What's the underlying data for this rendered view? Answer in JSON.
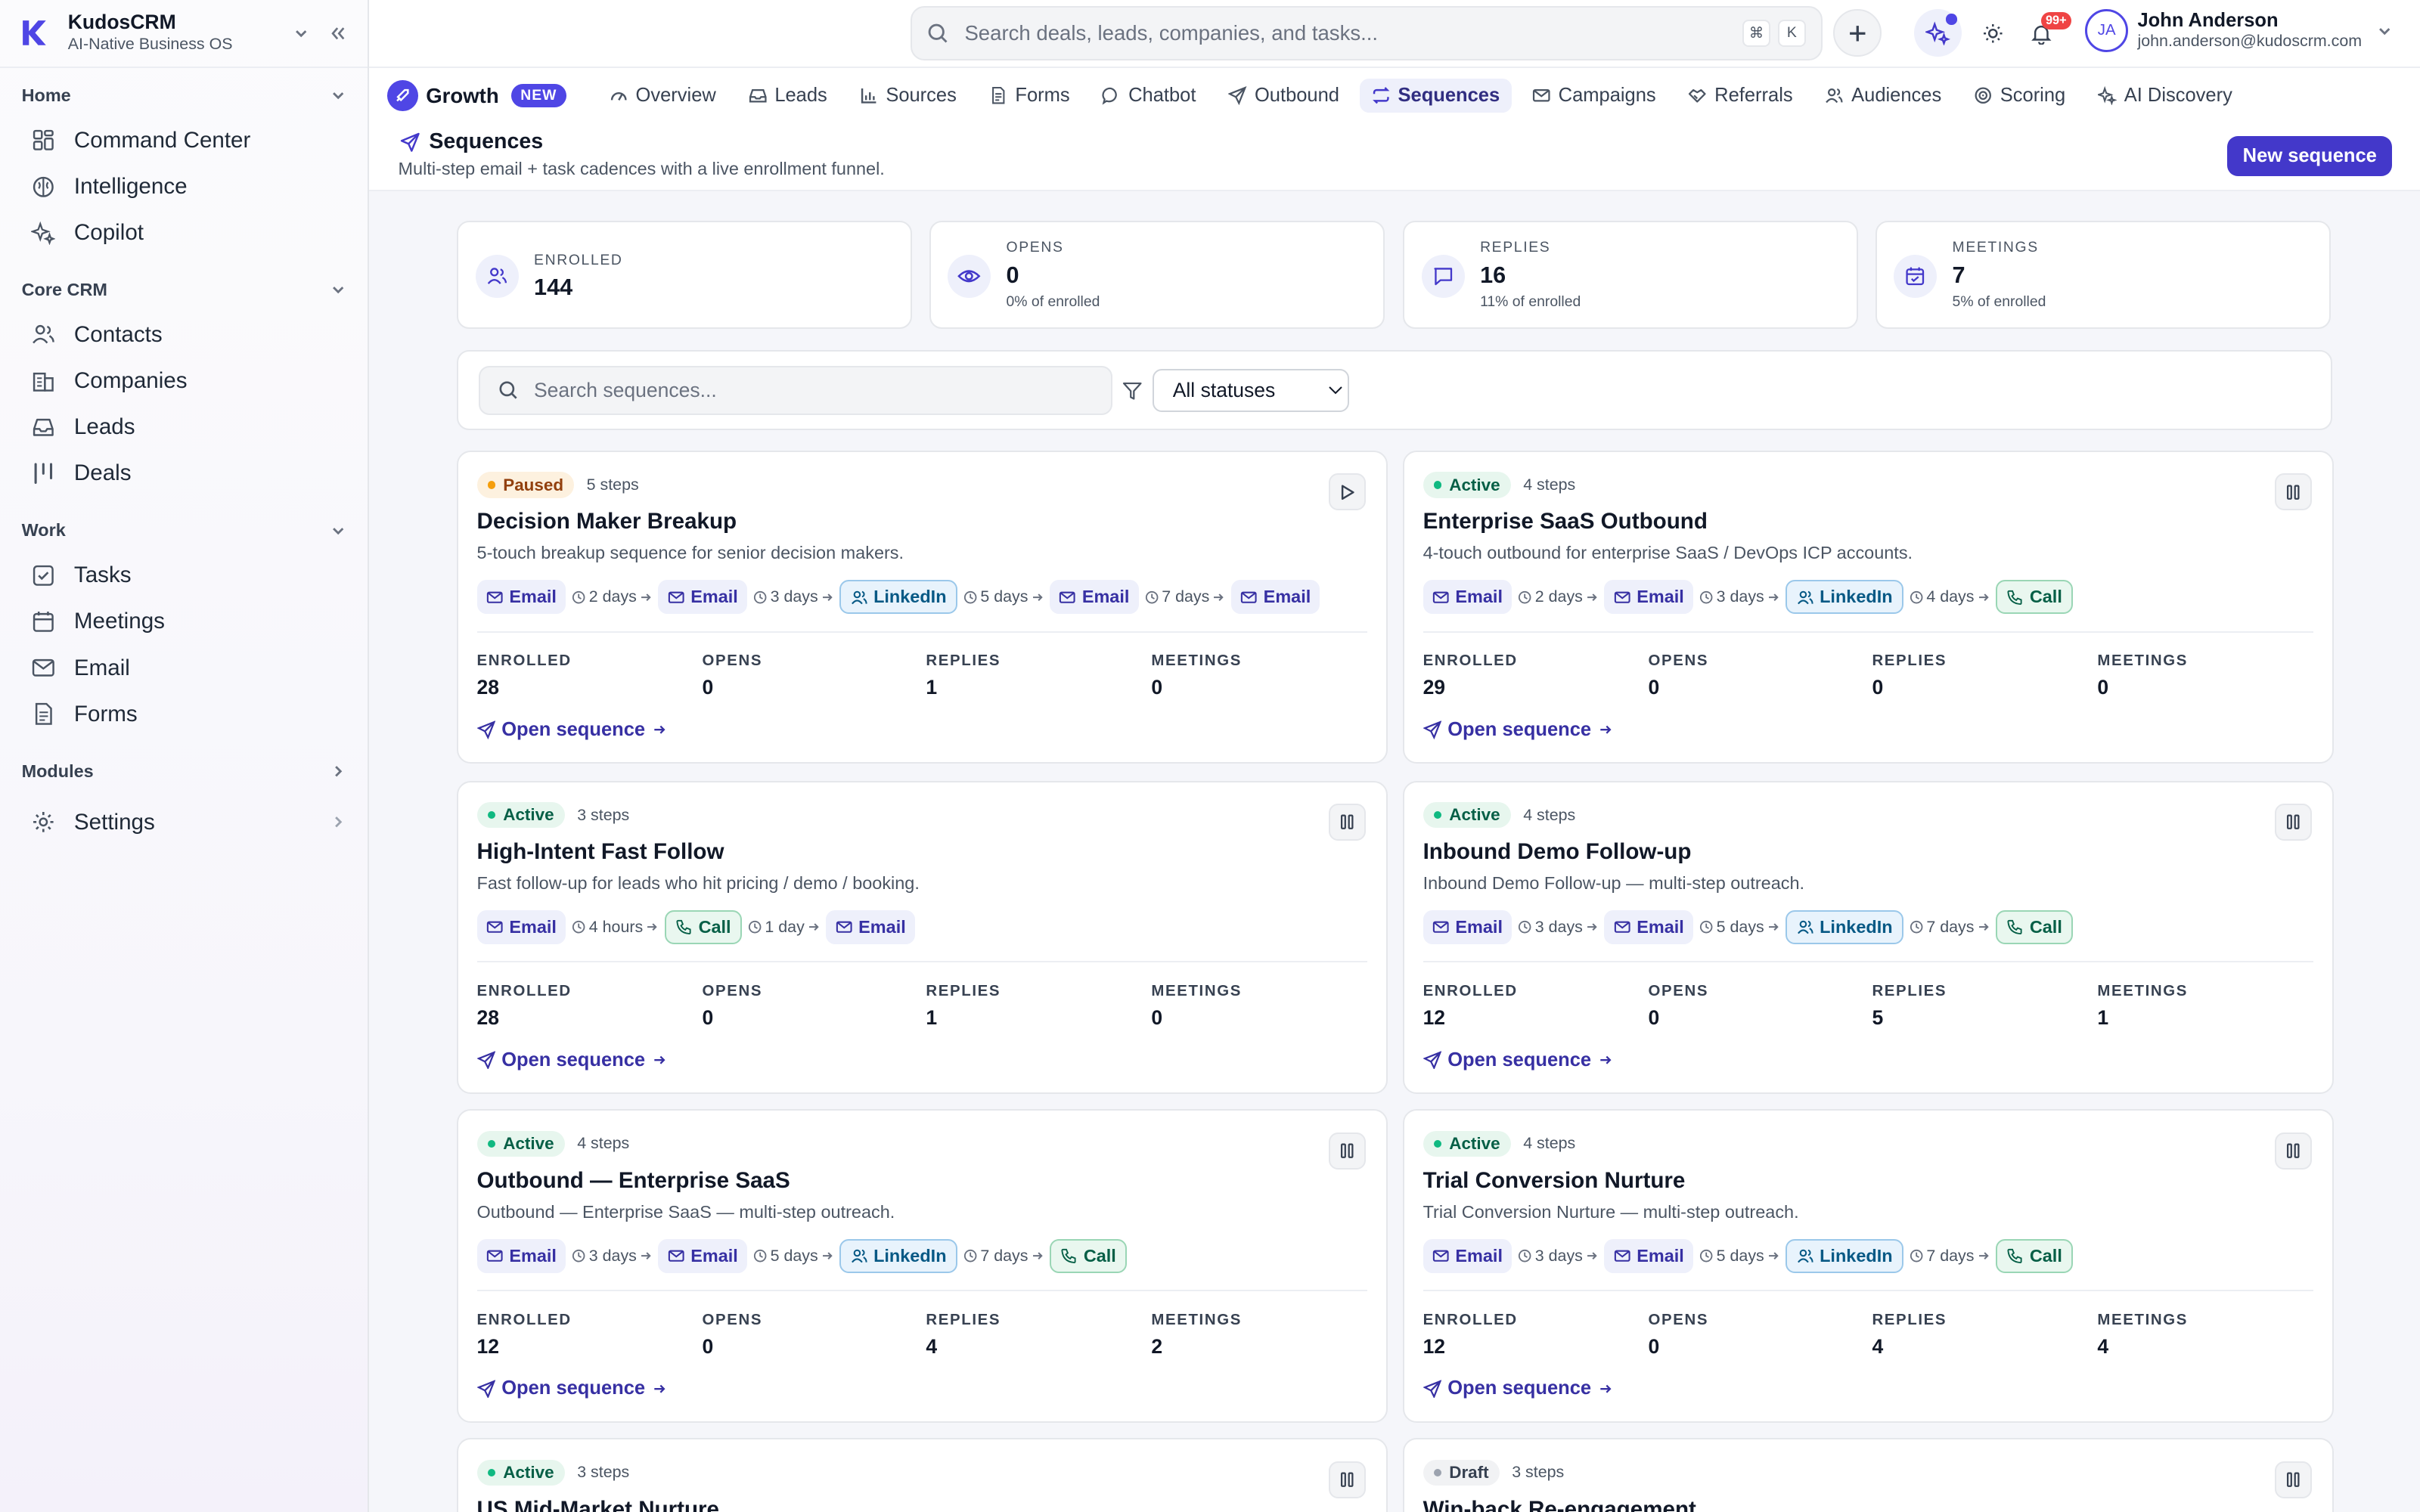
{
  "brand": {
    "name": "KudosCRM",
    "subtitle": "AI-Native Business OS"
  },
  "sidebar": {
    "sections": [
      {
        "label": "Home",
        "items": [
          {
            "label": "Command Center",
            "icon": "grid-icon"
          },
          {
            "label": "Intelligence",
            "icon": "brain-icon"
          },
          {
            "label": "Copilot",
            "icon": "sparkles-icon"
          }
        ]
      },
      {
        "label": "Core CRM",
        "items": [
          {
            "label": "Contacts",
            "icon": "users-icon"
          },
          {
            "label": "Companies",
            "icon": "building-icon"
          },
          {
            "label": "Leads",
            "icon": "inbox-icon"
          },
          {
            "label": "Deals",
            "icon": "kanban-icon"
          }
        ]
      },
      {
        "label": "Work",
        "items": [
          {
            "label": "Tasks",
            "icon": "checkbox-icon"
          },
          {
            "label": "Meetings",
            "icon": "calendar-icon"
          },
          {
            "label": "Email",
            "icon": "mail-icon"
          },
          {
            "label": "Forms",
            "icon": "file-icon"
          }
        ]
      },
      {
        "label": "Modules",
        "items": []
      }
    ],
    "settings_label": "Settings"
  },
  "topbar": {
    "search_placeholder": "Search deals, leads, companies, and tasks...",
    "kbd": [
      "⌘",
      "K"
    ],
    "notification_count": "99+",
    "user": {
      "initials": "JA",
      "name": "John Anderson",
      "email": "john.anderson@kudoscrm.com"
    }
  },
  "tabs": {
    "growth_label": "Growth",
    "new_badge": "NEW",
    "items": [
      {
        "label": "Overview",
        "active": false
      },
      {
        "label": "Leads",
        "active": false
      },
      {
        "label": "Sources",
        "active": false
      },
      {
        "label": "Forms",
        "active": false
      },
      {
        "label": "Chatbot",
        "active": false
      },
      {
        "label": "Outbound",
        "active": false
      },
      {
        "label": "Sequences",
        "active": true
      },
      {
        "label": "Campaigns",
        "active": false
      },
      {
        "label": "Referrals",
        "active": false
      },
      {
        "label": "Audiences",
        "active": false
      },
      {
        "label": "Scoring",
        "active": false
      },
      {
        "label": "AI Discovery",
        "active": false
      }
    ]
  },
  "page": {
    "title": "Sequences",
    "subtitle": "Multi-step email + task cadences with a live enrollment funnel.",
    "new_button": "New sequence"
  },
  "stats": [
    {
      "label": "ENROLLED",
      "value": "144",
      "note": ""
    },
    {
      "label": "OPENS",
      "value": "0",
      "note": "0% of enrolled"
    },
    {
      "label": "REPLIES",
      "value": "16",
      "note": "11% of enrolled"
    },
    {
      "label": "MEETINGS",
      "value": "7",
      "note": "5% of enrolled"
    }
  ],
  "filters": {
    "search_placeholder": "Search sequences...",
    "status_selected": "All statuses"
  },
  "metric_labels": {
    "enrolled": "ENROLLED",
    "opens": "OPENS",
    "replies": "REPLIES",
    "meetings": "MEETINGS"
  },
  "open_link_label": "Open sequence",
  "sequences": [
    {
      "status": "Paused",
      "steps_label": "5 steps",
      "title": "Decision Maker Breakup",
      "description": "5-touch breakup sequence for senior decision makers.",
      "steps": [
        {
          "type": "Email"
        },
        {
          "delay": "2 days"
        },
        {
          "type": "Email"
        },
        {
          "delay": "3 days"
        },
        {
          "type": "LinkedIn"
        },
        {
          "delay": "5 days"
        },
        {
          "type": "Email"
        },
        {
          "delay": "7 days"
        },
        {
          "type": "Email"
        }
      ],
      "enrolled": "28",
      "opens": "0",
      "replies": "1",
      "meetings": "0"
    },
    {
      "status": "Active",
      "steps_label": "4 steps",
      "title": "Enterprise SaaS Outbound",
      "description": "4-touch outbound for enterprise SaaS / DevOps ICP accounts.",
      "steps": [
        {
          "type": "Email"
        },
        {
          "delay": "2 days"
        },
        {
          "type": "Email"
        },
        {
          "delay": "3 days"
        },
        {
          "type": "LinkedIn"
        },
        {
          "delay": "4 days"
        },
        {
          "type": "Call"
        }
      ],
      "enrolled": "29",
      "opens": "0",
      "replies": "0",
      "meetings": "0"
    },
    {
      "status": "Active",
      "steps_label": "3 steps",
      "title": "High-Intent Fast Follow",
      "description": "Fast follow-up for leads who hit pricing / demo / booking.",
      "steps": [
        {
          "type": "Email"
        },
        {
          "delay": "4 hours"
        },
        {
          "type": "Call"
        },
        {
          "delay": "1 day"
        },
        {
          "type": "Email"
        }
      ],
      "enrolled": "28",
      "opens": "0",
      "replies": "1",
      "meetings": "0"
    },
    {
      "status": "Active",
      "steps_label": "4 steps",
      "title": "Inbound Demo Follow-up",
      "description": "Inbound Demo Follow-up — multi-step outreach.",
      "steps": [
        {
          "type": "Email"
        },
        {
          "delay": "3 days"
        },
        {
          "type": "Email"
        },
        {
          "delay": "5 days"
        },
        {
          "type": "LinkedIn"
        },
        {
          "delay": "7 days"
        },
        {
          "type": "Call"
        }
      ],
      "enrolled": "12",
      "opens": "0",
      "replies": "5",
      "meetings": "1"
    },
    {
      "status": "Active",
      "steps_label": "4 steps",
      "title": "Outbound — Enterprise SaaS",
      "description": "Outbound — Enterprise SaaS — multi-step outreach.",
      "steps": [
        {
          "type": "Email"
        },
        {
          "delay": "3 days"
        },
        {
          "type": "Email"
        },
        {
          "delay": "5 days"
        },
        {
          "type": "LinkedIn"
        },
        {
          "delay": "7 days"
        },
        {
          "type": "Call"
        }
      ],
      "enrolled": "12",
      "opens": "0",
      "replies": "4",
      "meetings": "2"
    },
    {
      "status": "Active",
      "steps_label": "4 steps",
      "title": "Trial Conversion Nurture",
      "description": "Trial Conversion Nurture — multi-step outreach.",
      "steps": [
        {
          "type": "Email"
        },
        {
          "delay": "3 days"
        },
        {
          "type": "Email"
        },
        {
          "delay": "5 days"
        },
        {
          "type": "LinkedIn"
        },
        {
          "delay": "7 days"
        },
        {
          "type": "Call"
        }
      ],
      "enrolled": "12",
      "opens": "0",
      "replies": "4",
      "meetings": "4"
    },
    {
      "status": "Active",
      "steps_label": "3 steps",
      "title": "US Mid-Market Nurture",
      "description": "",
      "steps": [],
      "enrolled": "",
      "opens": "",
      "replies": "",
      "meetings": ""
    },
    {
      "status": "Draft",
      "steps_label": "3 steps",
      "title": "Win-back Re-engagement",
      "description": "",
      "steps": [],
      "enrolled": "",
      "opens": "",
      "replies": "",
      "meetings": ""
    }
  ]
}
